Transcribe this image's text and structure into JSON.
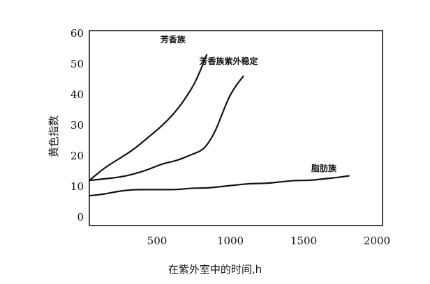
{
  "chart_data": {
    "type": "line",
    "xlabel": "在紫外室中的时间,h",
    "ylabel": "黄色指数",
    "xlim": [
      0,
      2000
    ],
    "ylim": [
      0,
      60
    ],
    "x_ticks": [
      {
        "value": 500,
        "label": "500"
      },
      {
        "value": 1000,
        "label": "1000"
      },
      {
        "value": 1500,
        "label": "1500"
      },
      {
        "value": 2000,
        "label": "2000"
      }
    ],
    "y_ticks": [
      {
        "value": 0,
        "label": "0"
      },
      {
        "value": 10,
        "label": "10"
      },
      {
        "value": 20,
        "label": "20"
      },
      {
        "value": 30,
        "label": "30"
      },
      {
        "value": 40,
        "label": "40"
      },
      {
        "value": 50,
        "label": "50"
      },
      {
        "value": 60,
        "label": "60"
      }
    ],
    "grid": false,
    "legend": "none",
    "series": [
      {
        "name": "芳香族",
        "label_at": [
          570,
          57
        ],
        "points": [
          [
            0,
            12
          ],
          [
            100,
            16
          ],
          [
            200,
            19
          ],
          [
            300,
            22
          ],
          [
            400,
            26
          ],
          [
            500,
            30
          ],
          [
            600,
            35
          ],
          [
            700,
            42
          ],
          [
            750,
            47
          ],
          [
            800,
            53
          ]
        ]
      },
      {
        "name": "芳香族紫外稳定",
        "label_at": [
          950,
          50
        ],
        "points": [
          [
            0,
            12
          ],
          [
            100,
            12.5
          ],
          [
            200,
            13
          ],
          [
            300,
            14
          ],
          [
            400,
            15.5
          ],
          [
            500,
            17.5
          ],
          [
            600,
            18.5
          ],
          [
            700,
            20.5
          ],
          [
            780,
            22
          ],
          [
            850,
            27
          ],
          [
            900,
            33
          ],
          [
            950,
            39
          ],
          [
            1000,
            43
          ],
          [
            1050,
            46
          ]
        ]
      },
      {
        "name": "脂肪族",
        "label_at": [
          1600,
          15
        ],
        "points": [
          [
            0,
            7
          ],
          [
            100,
            7.5
          ],
          [
            200,
            8.5
          ],
          [
            300,
            9
          ],
          [
            400,
            9
          ],
          [
            500,
            9
          ],
          [
            600,
            9
          ],
          [
            700,
            9.5
          ],
          [
            800,
            9.5
          ],
          [
            900,
            10
          ],
          [
            1000,
            10.5
          ],
          [
            1100,
            11
          ],
          [
            1200,
            11
          ],
          [
            1300,
            11.5
          ],
          [
            1400,
            12
          ],
          [
            1500,
            12
          ],
          [
            1600,
            12.5
          ],
          [
            1700,
            13
          ],
          [
            1770,
            13.5
          ]
        ]
      }
    ]
  }
}
